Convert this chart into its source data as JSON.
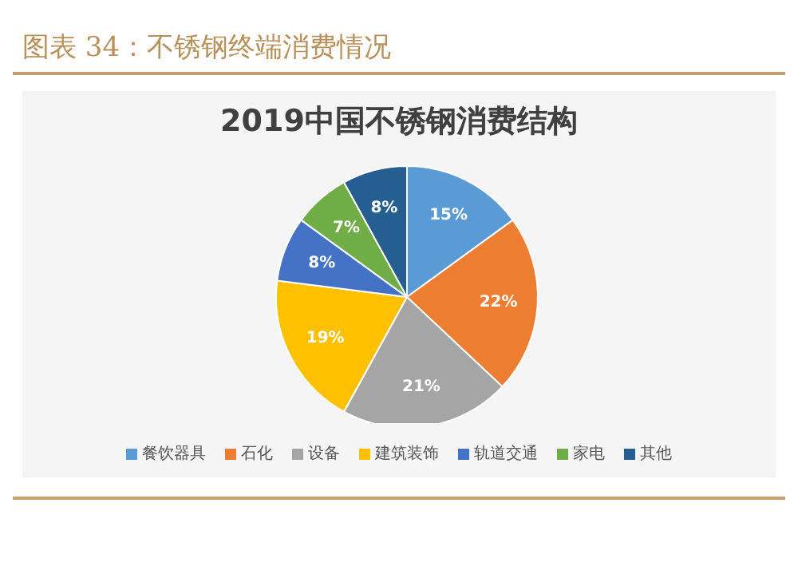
{
  "chart_data": {
    "type": "pie",
    "title": "图表 34：不锈钢终端消费情况",
    "subtitle": "2019中国不锈钢消费结构",
    "categories": [
      "餐饮器具",
      "石化",
      "设备",
      "建筑装饰",
      "轨道交通",
      "家电",
      "其他"
    ],
    "values": [
      15,
      22,
      21,
      19,
      8,
      7,
      8
    ],
    "colors": [
      "#5b9bd5",
      "#ed7d31",
      "#a5a5a5",
      "#ffc000",
      "#4472c4",
      "#70ad47",
      "#255e91"
    ],
    "value_labels": [
      "15%",
      "22%",
      "21%",
      "19%",
      "8%",
      "7%",
      "8%"
    ],
    "legend": "bottom"
  }
}
